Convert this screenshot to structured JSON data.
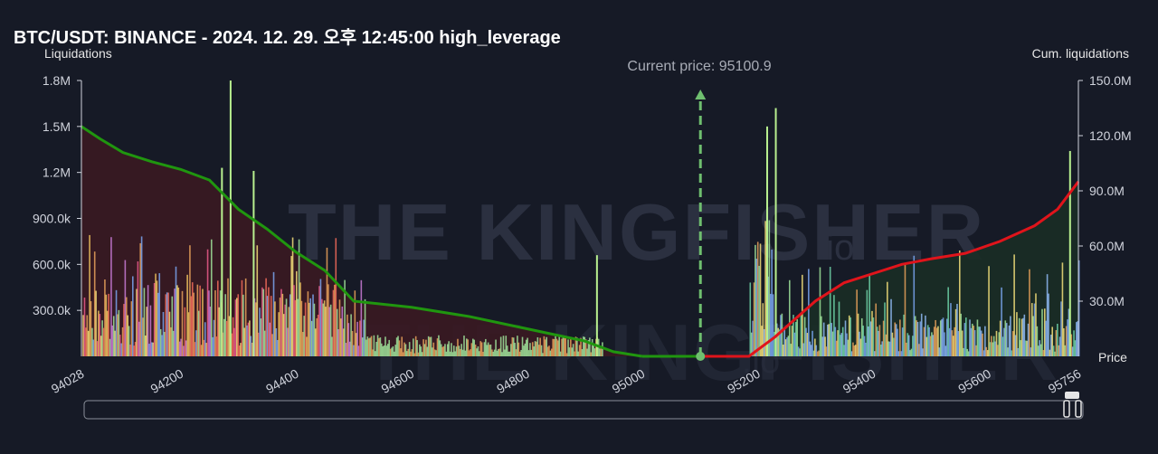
{
  "title": "BTC/USDT: BINANCE - 2024. 12. 29. 오후 12:45:00 high_leverage",
  "watermark": {
    "text": "THE KINGFISHER",
    "suffix": ".io"
  },
  "colors": {
    "background": "#161a26",
    "short_cum": "#20960f",
    "long_cum": "#e0141b",
    "short_fill": "#3a1a22",
    "long_fill": "#1a2e26",
    "current_price_line": "#6fbf6f",
    "bar_palette": [
      "#e8a15a",
      "#f26b5b",
      "#c97bd6",
      "#f5e07a",
      "#9fe39a",
      "#7aa6f0",
      "#ea5b8a",
      "#f0c45e"
    ]
  },
  "chart_data": {
    "type": "bar",
    "title": "BTC/USDT: BINANCE - 2024. 12. 29. 오후 12:45:00 high_leverage",
    "xlabel": "Price",
    "ylabel_left": "Liquidations",
    "ylabel_right": "Cum. liquidations",
    "x_range": [
      94028,
      95756
    ],
    "ylim_left": [
      0,
      1800000
    ],
    "ylim_right": [
      0,
      150000000
    ],
    "x_ticks": [
      {
        "value": 94028,
        "label": "94028"
      },
      {
        "value": 94200,
        "label": "94200"
      },
      {
        "value": 94400,
        "label": "94400"
      },
      {
        "value": 94600,
        "label": "94600"
      },
      {
        "value": 94800,
        "label": "94800"
      },
      {
        "value": 95000,
        "label": "95000"
      },
      {
        "value": 95200,
        "label": "95200"
      },
      {
        "value": 95400,
        "label": "95400"
      },
      {
        "value": 95600,
        "label": "95600"
      },
      {
        "value": 95756,
        "label": "95756"
      }
    ],
    "y_left_ticks": [
      {
        "value": 300000,
        "label": "300.0k"
      },
      {
        "value": 600000,
        "label": "600.0k"
      },
      {
        "value": 900000,
        "label": "900.0k"
      },
      {
        "value": 1200000,
        "label": "1.2M"
      },
      {
        "value": 1500000,
        "label": "1.5M"
      },
      {
        "value": 1800000,
        "label": "1.8M"
      }
    ],
    "y_right_ticks": [
      {
        "value": 30000000,
        "label": "30.0M"
      },
      {
        "value": 60000000,
        "label": "60.0M"
      },
      {
        "value": 90000000,
        "label": "90.0M"
      },
      {
        "value": 120000000,
        "label": "120.0M"
      },
      {
        "value": 150000000,
        "label": "150.0M"
      }
    ],
    "current_price": 95100.9,
    "current_price_label": "Current price: 95100.9",
    "short_side_range": [
      94028,
      95000
    ],
    "long_side_range": [
      95185,
      95756
    ],
    "notable_bars": [
      {
        "x": 94285,
        "value": 1800000
      },
      {
        "x": 94270,
        "value": 1230000
      },
      {
        "x": 94325,
        "value": 1210000
      },
      {
        "x": 95230,
        "value": 1620000
      },
      {
        "x": 95215,
        "value": 1500000
      },
      {
        "x": 95740,
        "value": 1340000
      },
      {
        "x": 94920,
        "value": 660000
      }
    ],
    "cum_short": [
      {
        "x": 94028,
        "y": 1500000
      },
      {
        "x": 94060,
        "y": 1420000
      },
      {
        "x": 94100,
        "y": 1330000
      },
      {
        "x": 94150,
        "y": 1270000
      },
      {
        "x": 94200,
        "y": 1220000
      },
      {
        "x": 94250,
        "y": 1150000
      },
      {
        "x": 94300,
        "y": 960000
      },
      {
        "x": 94350,
        "y": 830000
      },
      {
        "x": 94400,
        "y": 680000
      },
      {
        "x": 94450,
        "y": 560000
      },
      {
        "x": 94500,
        "y": 360000
      },
      {
        "x": 94600,
        "y": 320000
      },
      {
        "x": 94700,
        "y": 260000
      },
      {
        "x": 94800,
        "y": 180000
      },
      {
        "x": 94900,
        "y": 100000
      },
      {
        "x": 94950,
        "y": 30000
      },
      {
        "x": 95000,
        "y": 0
      }
    ],
    "cum_long": [
      {
        "x": 95100.9,
        "y": 0
      },
      {
        "x": 95185,
        "y": 0
      },
      {
        "x": 95230,
        "y": 10500000
      },
      {
        "x": 95300,
        "y": 30000000
      },
      {
        "x": 95350,
        "y": 40000000
      },
      {
        "x": 95400,
        "y": 45000000
      },
      {
        "x": 95450,
        "y": 50000000
      },
      {
        "x": 95500,
        "y": 53000000
      },
      {
        "x": 95560,
        "y": 56000000
      },
      {
        "x": 95620,
        "y": 62500000
      },
      {
        "x": 95680,
        "y": 71000000
      },
      {
        "x": 95720,
        "y": 80000000
      },
      {
        "x": 95756,
        "y": 95000000
      }
    ]
  }
}
